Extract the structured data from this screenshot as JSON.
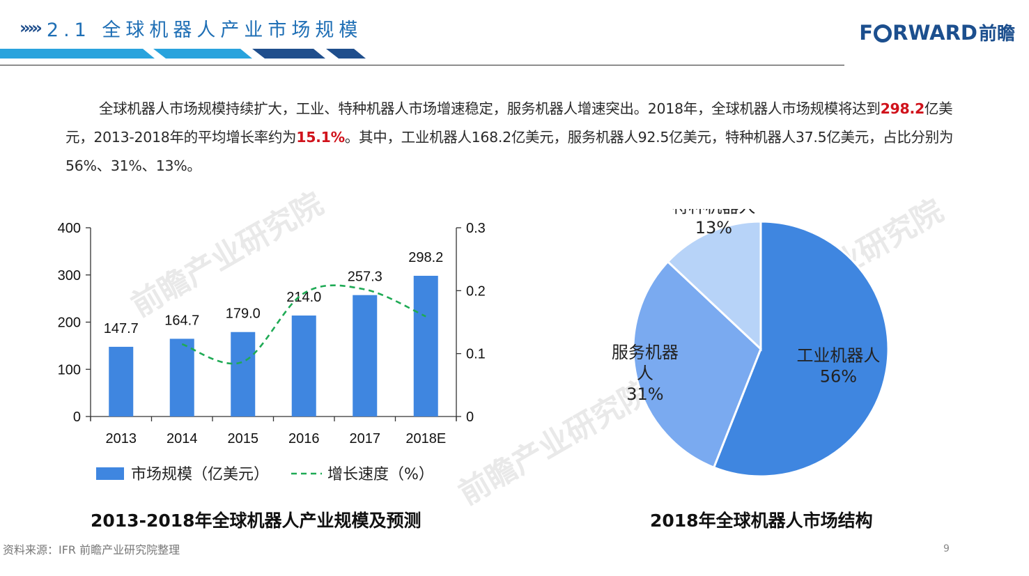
{
  "header": {
    "chevrons": "»»›",
    "title": "2.1 全球机器人产业市场规模",
    "logo_text_a": "F",
    "logo_text_b": "RWARD",
    "logo_text_cn": "前瞻",
    "colors": {
      "bar_light": "#29a3dd",
      "bar_dark": "#1f4e8c",
      "title": "#1f6fb5"
    }
  },
  "intro": {
    "part1": "全球机器人市场规模持续扩大，工业、特种机器人市场增速稳定，服务机器人增速突出。2018年，全球机器人市场规模将达到",
    "hl1": "298.2",
    "part2": "亿美元，2013-2018年的平均增长率约为",
    "hl2": "15.1%",
    "part3": "。其中，工业机器人168.2亿美元，服务机器人92.5亿美元，特种机器人37.5亿美元，占比分别为56%、31%、13%。"
  },
  "watermark": "前瞻产业研究院",
  "chart_data": [
    {
      "type": "bar",
      "categories": [
        "2013",
        "2014",
        "2015",
        "2016",
        "2017",
        "2018E"
      ],
      "series": [
        {
          "name": "市场规模（亿美元）",
          "kind": "bar",
          "axis": "left",
          "color": "#3f86e0",
          "values": [
            147.7,
            164.7,
            179.0,
            214.0,
            257.3,
            298.2
          ],
          "labels": [
            "147.7",
            "164.7",
            "179.0",
            "214.0",
            "257.3",
            "298.2"
          ]
        },
        {
          "name": "增长速度（%）",
          "kind": "line",
          "style": "dashed",
          "axis": "right",
          "color": "#1faa55",
          "values": [
            null,
            0.115,
            0.087,
            0.196,
            0.202,
            0.159
          ]
        }
      ],
      "y_left": {
        "ylim": [
          0,
          400
        ],
        "ticks": [
          0,
          100,
          200,
          300,
          400
        ]
      },
      "y_right": {
        "ylim": [
          0,
          0.3
        ],
        "ticks": [
          "0",
          "0.1",
          "0.2",
          "0.3"
        ]
      },
      "legend_position": "bottom",
      "caption": "2013-2018年全球机器人产业规模及预测"
    },
    {
      "type": "pie",
      "slices": [
        {
          "name": "工业机器人",
          "value": 56,
          "label": "56%",
          "color": "#3f86e0"
        },
        {
          "name": "服务机器人",
          "value": 31,
          "label": "31%",
          "color": "#7aaaf0"
        },
        {
          "name": "特种机器人",
          "value": 13,
          "label": "13%",
          "color": "#b7d3f8"
        }
      ],
      "caption": "2018年全球机器人市场结构"
    }
  ],
  "footer": {
    "source": "资料来源：IFR 前瞻产业研究院整理",
    "page": "9"
  }
}
